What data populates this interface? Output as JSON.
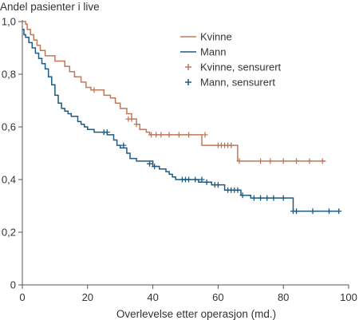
{
  "chart_data": {
    "type": "line",
    "subtype": "kaplan-meier",
    "ylabel": "Andel pasienter i live",
    "xlabel": "Overlevelse etter operasjon (md.)",
    "xlim": [
      0,
      100
    ],
    "ylim": [
      0,
      1
    ],
    "x_ticks": [
      0,
      20,
      40,
      60,
      80,
      100
    ],
    "x_tick_labels": [
      "0",
      "20",
      "40",
      "60",
      "80",
      "100"
    ],
    "y_ticks": [
      0,
      0.2,
      0.4,
      0.6,
      0.8,
      1.0
    ],
    "y_tick_labels": [
      "0",
      "0,2",
      "0,4",
      "0,6",
      "0,8",
      "1,0"
    ],
    "grid": false,
    "legend_position": "top-right",
    "series": [
      {
        "name": "Kvinne",
        "color": "#c0785a",
        "steps": [
          [
            0,
            1.0
          ],
          [
            1,
            0.99
          ],
          [
            1.5,
            0.97
          ],
          [
            2.5,
            0.95
          ],
          [
            3.5,
            0.93
          ],
          [
            4.5,
            0.91
          ],
          [
            5.5,
            0.89
          ],
          [
            7,
            0.87
          ],
          [
            10,
            0.85
          ],
          [
            13,
            0.83
          ],
          [
            14.5,
            0.81
          ],
          [
            16,
            0.79
          ],
          [
            18,
            0.77
          ],
          [
            19.5,
            0.75
          ],
          [
            21,
            0.74
          ],
          [
            25,
            0.72
          ],
          [
            27,
            0.71
          ],
          [
            28.5,
            0.69
          ],
          [
            30,
            0.67
          ],
          [
            32,
            0.65
          ],
          [
            33.5,
            0.63
          ],
          [
            35,
            0.61
          ],
          [
            36,
            0.59
          ],
          [
            38,
            0.58
          ],
          [
            39,
            0.57
          ],
          [
            55,
            0.53
          ],
          [
            65,
            0.53
          ],
          [
            66,
            0.47
          ],
          [
            93,
            0.47
          ]
        ]
      },
      {
        "name": "Mann",
        "color": "#1e5a82",
        "steps": [
          [
            0,
            0.97
          ],
          [
            0.5,
            0.95
          ],
          [
            1,
            0.94
          ],
          [
            2,
            0.92
          ],
          [
            3,
            0.9
          ],
          [
            4,
            0.88
          ],
          [
            5,
            0.86
          ],
          [
            6,
            0.84
          ],
          [
            7,
            0.82
          ],
          [
            8,
            0.79
          ],
          [
            9,
            0.76
          ],
          [
            10,
            0.72
          ],
          [
            11,
            0.69
          ],
          [
            12,
            0.67
          ],
          [
            13,
            0.66
          ],
          [
            14,
            0.65
          ],
          [
            15,
            0.64
          ],
          [
            17,
            0.62
          ],
          [
            18,
            0.61
          ],
          [
            19,
            0.6
          ],
          [
            20,
            0.59
          ],
          [
            22,
            0.58
          ],
          [
            24,
            0.58
          ],
          [
            26,
            0.57
          ],
          [
            28,
            0.55
          ],
          [
            29,
            0.53
          ],
          [
            30,
            0.52
          ],
          [
            32,
            0.5
          ],
          [
            33,
            0.48
          ],
          [
            35,
            0.47
          ],
          [
            38,
            0.47
          ],
          [
            40,
            0.45
          ],
          [
            42,
            0.44
          ],
          [
            44,
            0.43
          ],
          [
            45,
            0.42
          ],
          [
            46,
            0.41
          ],
          [
            47,
            0.4
          ],
          [
            54,
            0.39
          ],
          [
            56,
            0.39
          ],
          [
            58,
            0.38
          ],
          [
            62,
            0.36
          ],
          [
            67,
            0.34
          ],
          [
            70,
            0.33
          ],
          [
            83,
            0.28
          ],
          [
            97,
            0.28
          ]
        ]
      },
      {
        "name": "Kvinne, sensurert",
        "color": "#c0785a",
        "marker": "+",
        "points": [
          [
            22,
            0.74
          ],
          [
            32.5,
            0.63
          ],
          [
            33.5,
            0.63
          ],
          [
            35,
            0.61
          ],
          [
            39.5,
            0.57
          ],
          [
            41,
            0.57
          ],
          [
            42.5,
            0.57
          ],
          [
            45,
            0.57
          ],
          [
            48,
            0.57
          ],
          [
            51,
            0.57
          ],
          [
            56,
            0.57
          ],
          [
            60,
            0.53
          ],
          [
            61,
            0.53
          ],
          [
            62,
            0.53
          ],
          [
            63,
            0.53
          ],
          [
            64,
            0.53
          ],
          [
            66.5,
            0.47
          ],
          [
            73,
            0.47
          ],
          [
            76,
            0.47
          ],
          [
            80,
            0.47
          ],
          [
            84,
            0.47
          ],
          [
            88,
            0.47
          ],
          [
            92,
            0.47
          ]
        ]
      },
      {
        "name": "Mann, sensurert",
        "color": "#1e5a82",
        "marker": "+",
        "points": [
          [
            25,
            0.58
          ],
          [
            26,
            0.58
          ],
          [
            31,
            0.53
          ],
          [
            39,
            0.46
          ],
          [
            40.5,
            0.45
          ],
          [
            49,
            0.4
          ],
          [
            50,
            0.4
          ],
          [
            51,
            0.4
          ],
          [
            53,
            0.4
          ],
          [
            55,
            0.4
          ],
          [
            56.5,
            0.39
          ],
          [
            59,
            0.38
          ],
          [
            60,
            0.38
          ],
          [
            63,
            0.36
          ],
          [
            64,
            0.36
          ],
          [
            65,
            0.36
          ],
          [
            66,
            0.36
          ],
          [
            67.5,
            0.34
          ],
          [
            71,
            0.33
          ],
          [
            73,
            0.33
          ],
          [
            75,
            0.33
          ],
          [
            77,
            0.33
          ],
          [
            80,
            0.33
          ],
          [
            83,
            0.28
          ],
          [
            84,
            0.28
          ],
          [
            89,
            0.28
          ],
          [
            94,
            0.28
          ],
          [
            97,
            0.28
          ]
        ]
      }
    ]
  }
}
